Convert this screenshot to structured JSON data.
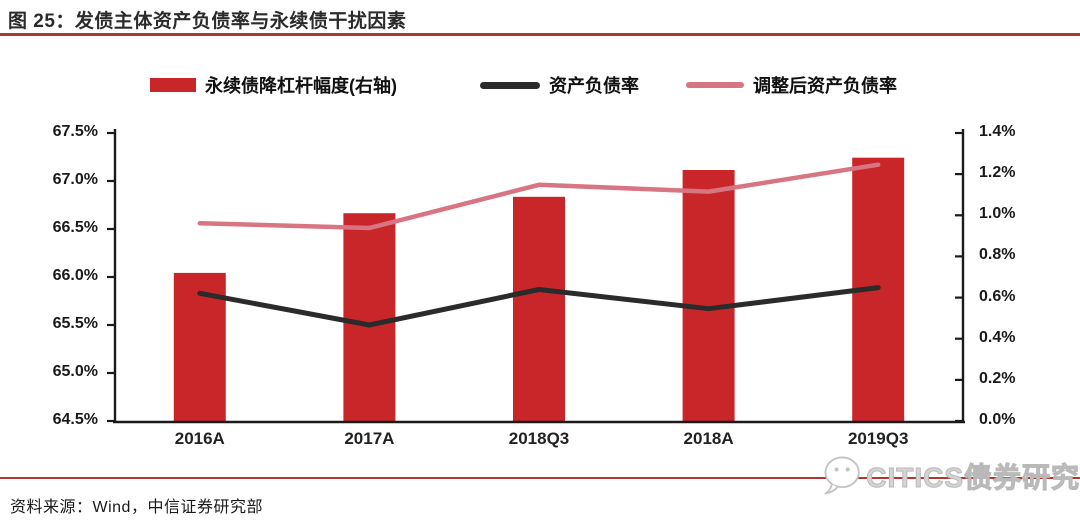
{
  "title": "图 25：发债主体资产负债率与永续债干扰因素",
  "source": "资料来源：Wind，中信证券研究部",
  "watermark": "CITICS债券研究",
  "colors": {
    "bar_red": "#c9262a",
    "line_black": "#2b2b2b",
    "line_pink": "#d87583",
    "title_underline": "#a93b30",
    "bottom_rule": "#b2382f",
    "axis": "#1a1a1a"
  },
  "legend": [
    {
      "label": "永续债降杠杆幅度(右轴)",
      "type": "bar",
      "color": "#c9262a"
    },
    {
      "label": "资产负债率",
      "type": "line",
      "color": "#2b2b2b"
    },
    {
      "label": "调整后资产负债率",
      "type": "line",
      "color": "#d87583"
    }
  ],
  "chart_data": {
    "type": "bar",
    "subtype": "combo-bar-line",
    "title": "发债主体资产负债率与永续债干扰因素",
    "categories": [
      "2016A",
      "2017A",
      "2018Q3",
      "2018A",
      "2019Q3"
    ],
    "series": [
      {
        "name": "永续债降杠杆幅度(右轴)",
        "type": "bar",
        "axis": "right",
        "color": "#c9262a",
        "values": [
          0.72,
          1.01,
          1.09,
          1.22,
          1.28
        ]
      },
      {
        "name": "资产负债率",
        "type": "line",
        "axis": "left",
        "color": "#2b2b2b",
        "values": [
          65.83,
          65.5,
          65.87,
          65.67,
          65.89
        ]
      },
      {
        "name": "调整后资产负债率",
        "type": "line",
        "axis": "left",
        "color": "#d87583",
        "values": [
          66.56,
          66.51,
          66.96,
          66.89,
          67.17
        ]
      }
    ],
    "left_axis": {
      "min": 64.5,
      "max": 67.5,
      "step": 0.5,
      "ticks": [
        "67.5%",
        "67.0%",
        "66.5%",
        "66.0%",
        "65.5%",
        "65.0%",
        "64.5%"
      ]
    },
    "right_axis": {
      "min": 0.0,
      "max": 1.4,
      "step": 0.2,
      "ticks": [
        "1.4%",
        "1.2%",
        "1.0%",
        "0.8%",
        "0.6%",
        "0.4%",
        "0.2%",
        "0.0%"
      ]
    },
    "grid": false,
    "legend_position": "top",
    "xlabel": "",
    "ylabel_left": "",
    "ylabel_right": ""
  }
}
